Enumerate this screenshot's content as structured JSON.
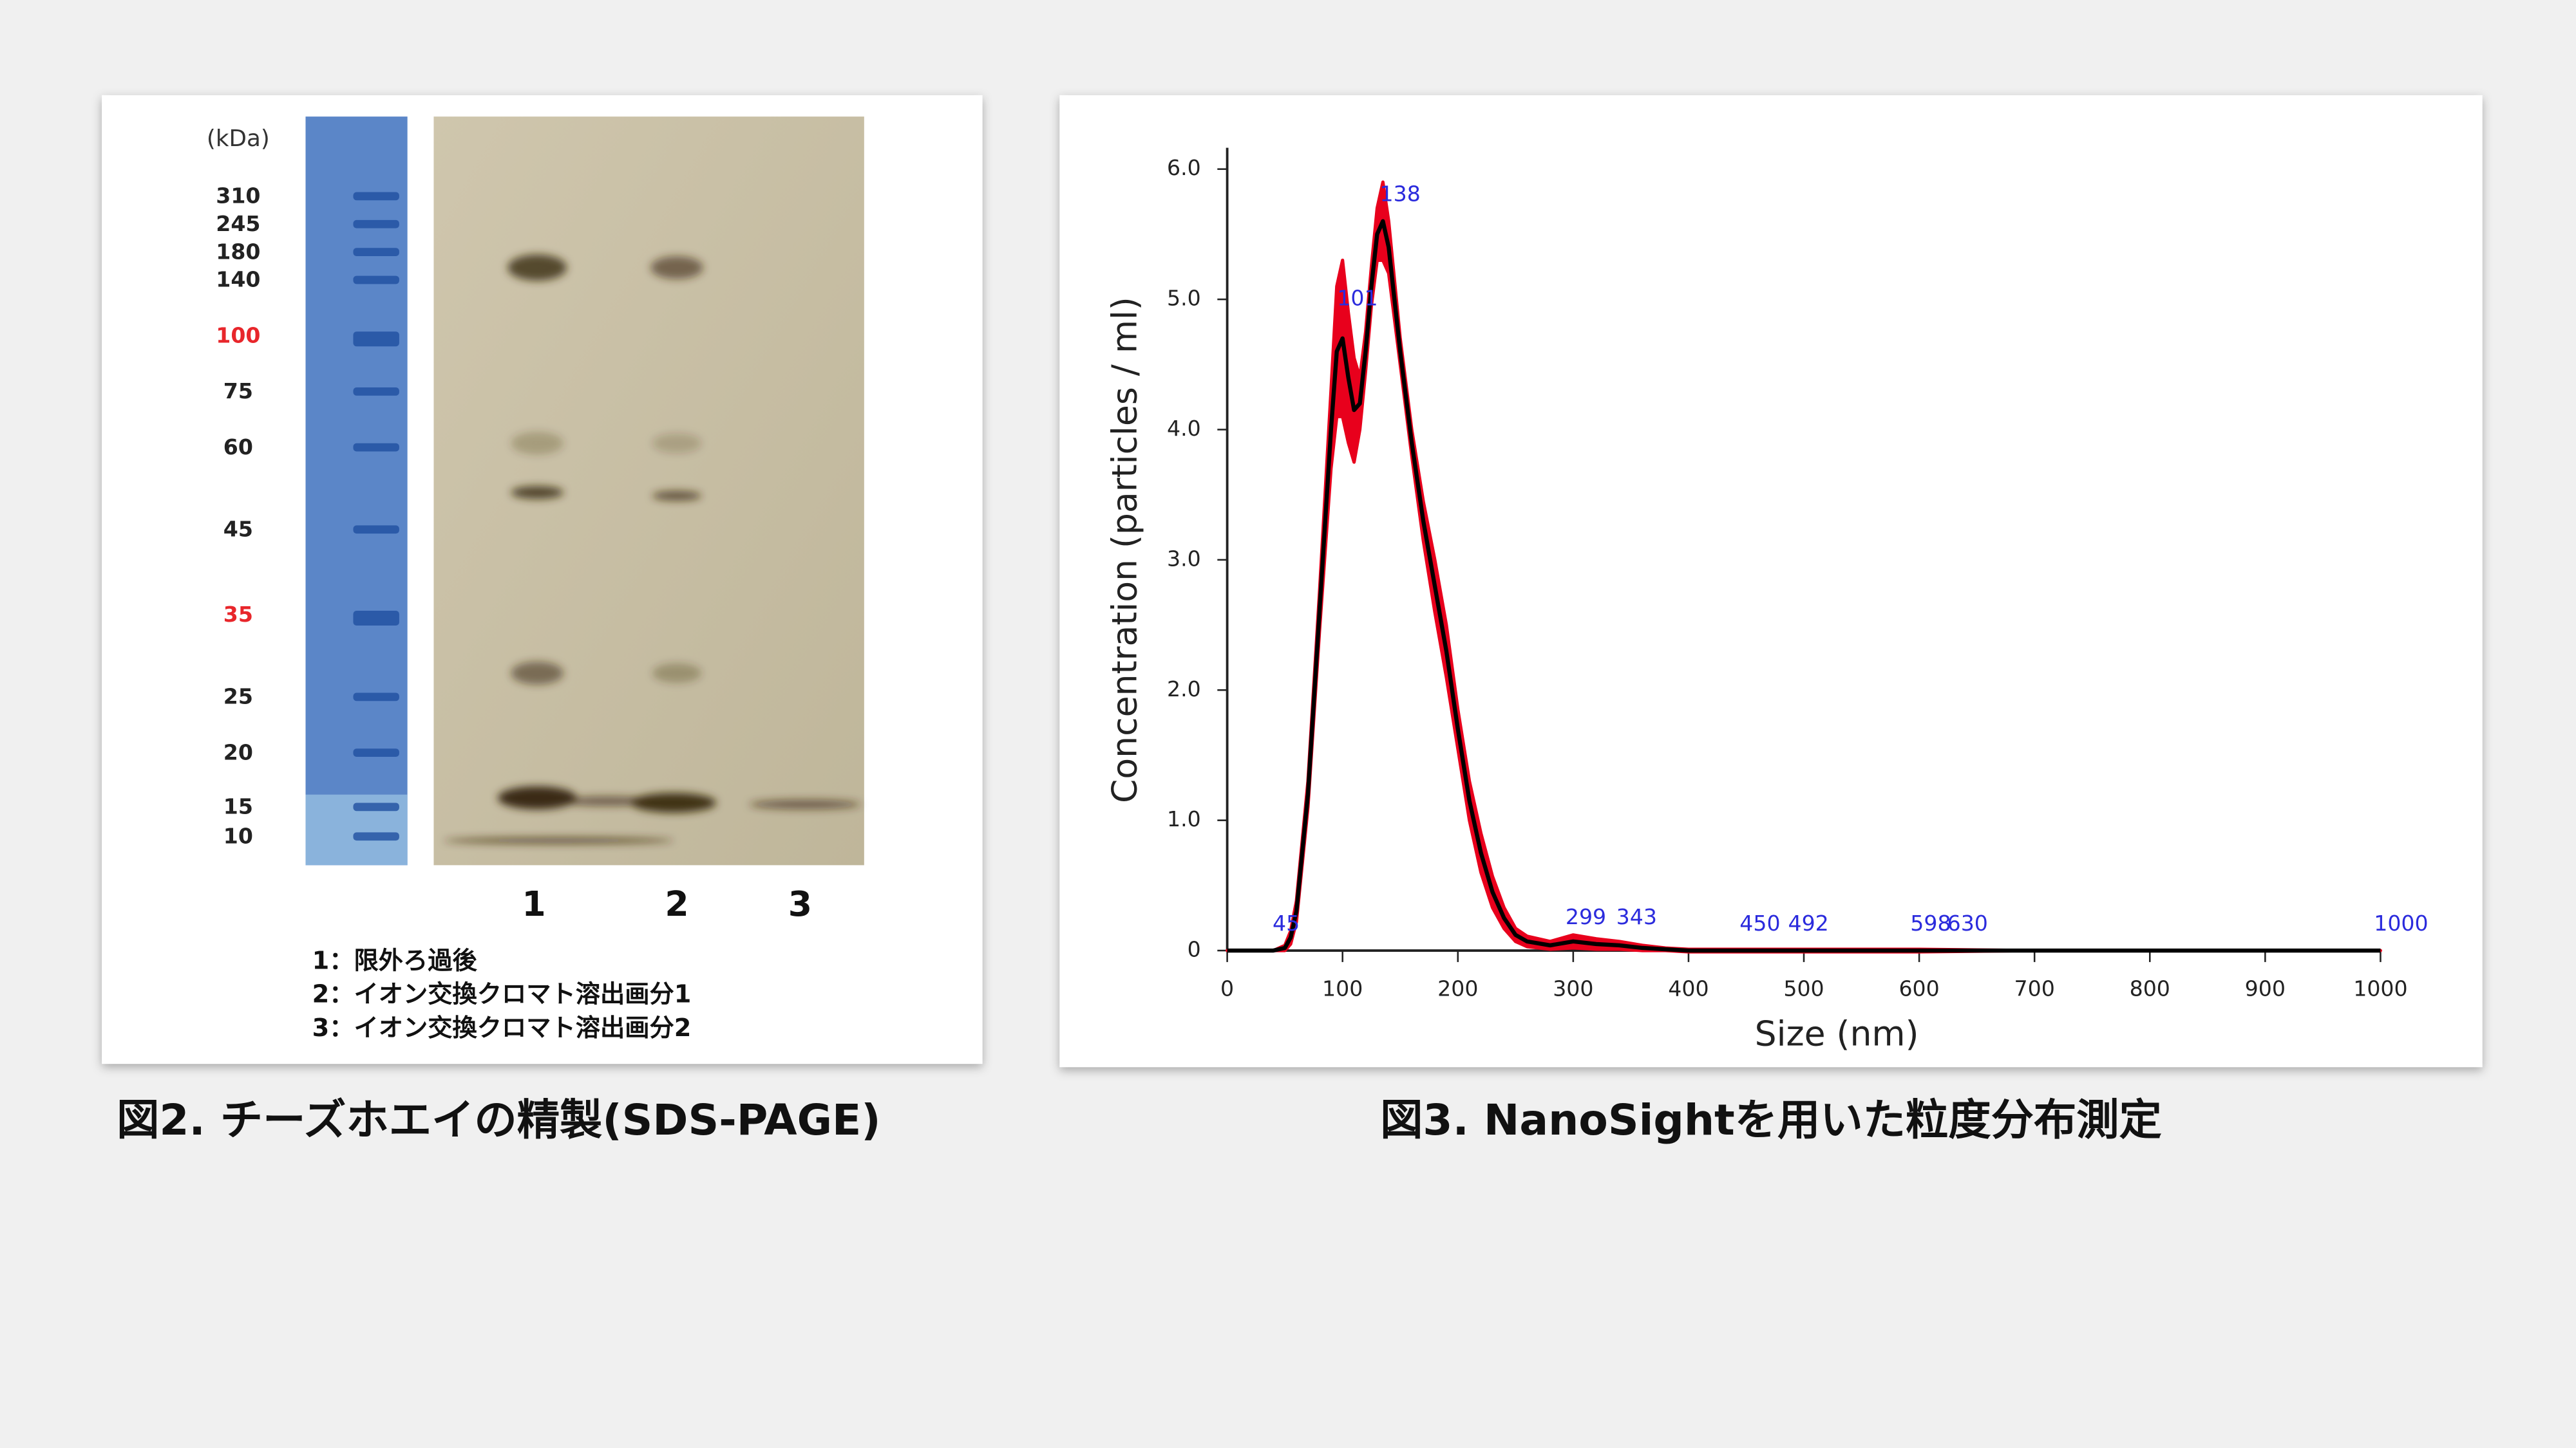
{
  "gel_figure": {
    "unit": "(kDa)",
    "markers": [
      {
        "label": "310"
      },
      {
        "label": "245"
      },
      {
        "label": "180"
      },
      {
        "label": "140"
      },
      {
        "label": "100",
        "color": "#e8262b"
      },
      {
        "label": "75"
      },
      {
        "label": "60"
      },
      {
        "label": "45"
      },
      {
        "label": "35",
        "color": "#e8262b"
      },
      {
        "label": "25"
      },
      {
        "label": "20"
      },
      {
        "label": "15"
      },
      {
        "label": "10"
      }
    ],
    "lanes": [
      "1",
      "2",
      "3"
    ],
    "legend": [
      "1：限外ろ過後",
      "2：イオン交換クロマト溶出画分1",
      "3：イオン交換クロマト溶出画分2"
    ],
    "caption": "図2. チーズホエイの精製(SDS-PAGE)"
  },
  "chart_data": {
    "type": "line",
    "caption": "図3. NanoSightを用いた粒度分布測定",
    "x_label": "Size (nm)",
    "y_label": "Concentration (particles / ml)",
    "xlim": [
      0,
      1000
    ],
    "xticks": [
      0,
      100,
      200,
      300,
      400,
      500,
      600,
      700,
      800,
      900,
      1000
    ],
    "ylim": [
      0,
      6
    ],
    "yticks": [
      0,
      {
        "value": 1,
        "label": "1.0"
      },
      {
        "value": 2,
        "label": "2.0"
      },
      {
        "value": 3,
        "label": "3.0"
      },
      {
        "value": 4,
        "label": "4.0"
      },
      {
        "value": 5,
        "label": "5.0"
      },
      {
        "value": 6,
        "label": "6.0"
      }
    ],
    "x": [
      0,
      40,
      50,
      55,
      60,
      70,
      80,
      90,
      95,
      100,
      105,
      110,
      115,
      120,
      125,
      130,
      135,
      140,
      150,
      160,
      170,
      180,
      190,
      200,
      210,
      220,
      230,
      240,
      250,
      260,
      280,
      300,
      320,
      340,
      360,
      380,
      400,
      450,
      500,
      600,
      700,
      800,
      900,
      1000
    ],
    "series": [
      {
        "color": "#000000",
        "error_color": "#e8001c",
        "values": [
          0,
          0,
          0.02,
          0.1,
          0.3,
          1.2,
          2.6,
          4.0,
          4.6,
          4.7,
          4.4,
          4.15,
          4.2,
          4.6,
          5.1,
          5.5,
          5.6,
          5.4,
          4.6,
          3.9,
          3.3,
          2.8,
          2.3,
          1.7,
          1.15,
          0.75,
          0.45,
          0.25,
          0.12,
          0.07,
          0.04,
          0.07,
          0.05,
          0.04,
          0.02,
          0.01,
          0,
          0,
          0,
          0,
          0,
          0,
          0,
          0
        ],
        "error": [
          0,
          0,
          0.02,
          0.05,
          0.08,
          0.1,
          0.15,
          0.3,
          0.5,
          0.6,
          0.5,
          0.4,
          0.2,
          0.15,
          0.15,
          0.2,
          0.3,
          0.2,
          0.1,
          0.1,
          0.15,
          0.2,
          0.2,
          0.15,
          0.15,
          0.15,
          0.12,
          0.08,
          0.05,
          0.04,
          0.03,
          0.05,
          0.04,
          0.03,
          0.02,
          0.01,
          0.01,
          0.01,
          0.01,
          0.01,
          0,
          0,
          0,
          0
        ]
      }
    ],
    "peaks": [
      {
        "x": 45,
        "y": 0.1
      },
      {
        "x": 101,
        "y": 4.9
      },
      {
        "x": 138,
        "y": 5.7
      },
      {
        "x": 299,
        "y": 0.15
      },
      {
        "x": 343,
        "y": 0.15
      },
      {
        "x": 450,
        "y": 0.1
      },
      {
        "x": 492,
        "y": 0.1
      },
      {
        "x": 598,
        "y": 0.1
      },
      {
        "x": 630,
        "y": 0.1
      },
      {
        "x": 1000,
        "y": 0.1
      }
    ],
    "peak_label_color": "#2b2bdd"
  }
}
